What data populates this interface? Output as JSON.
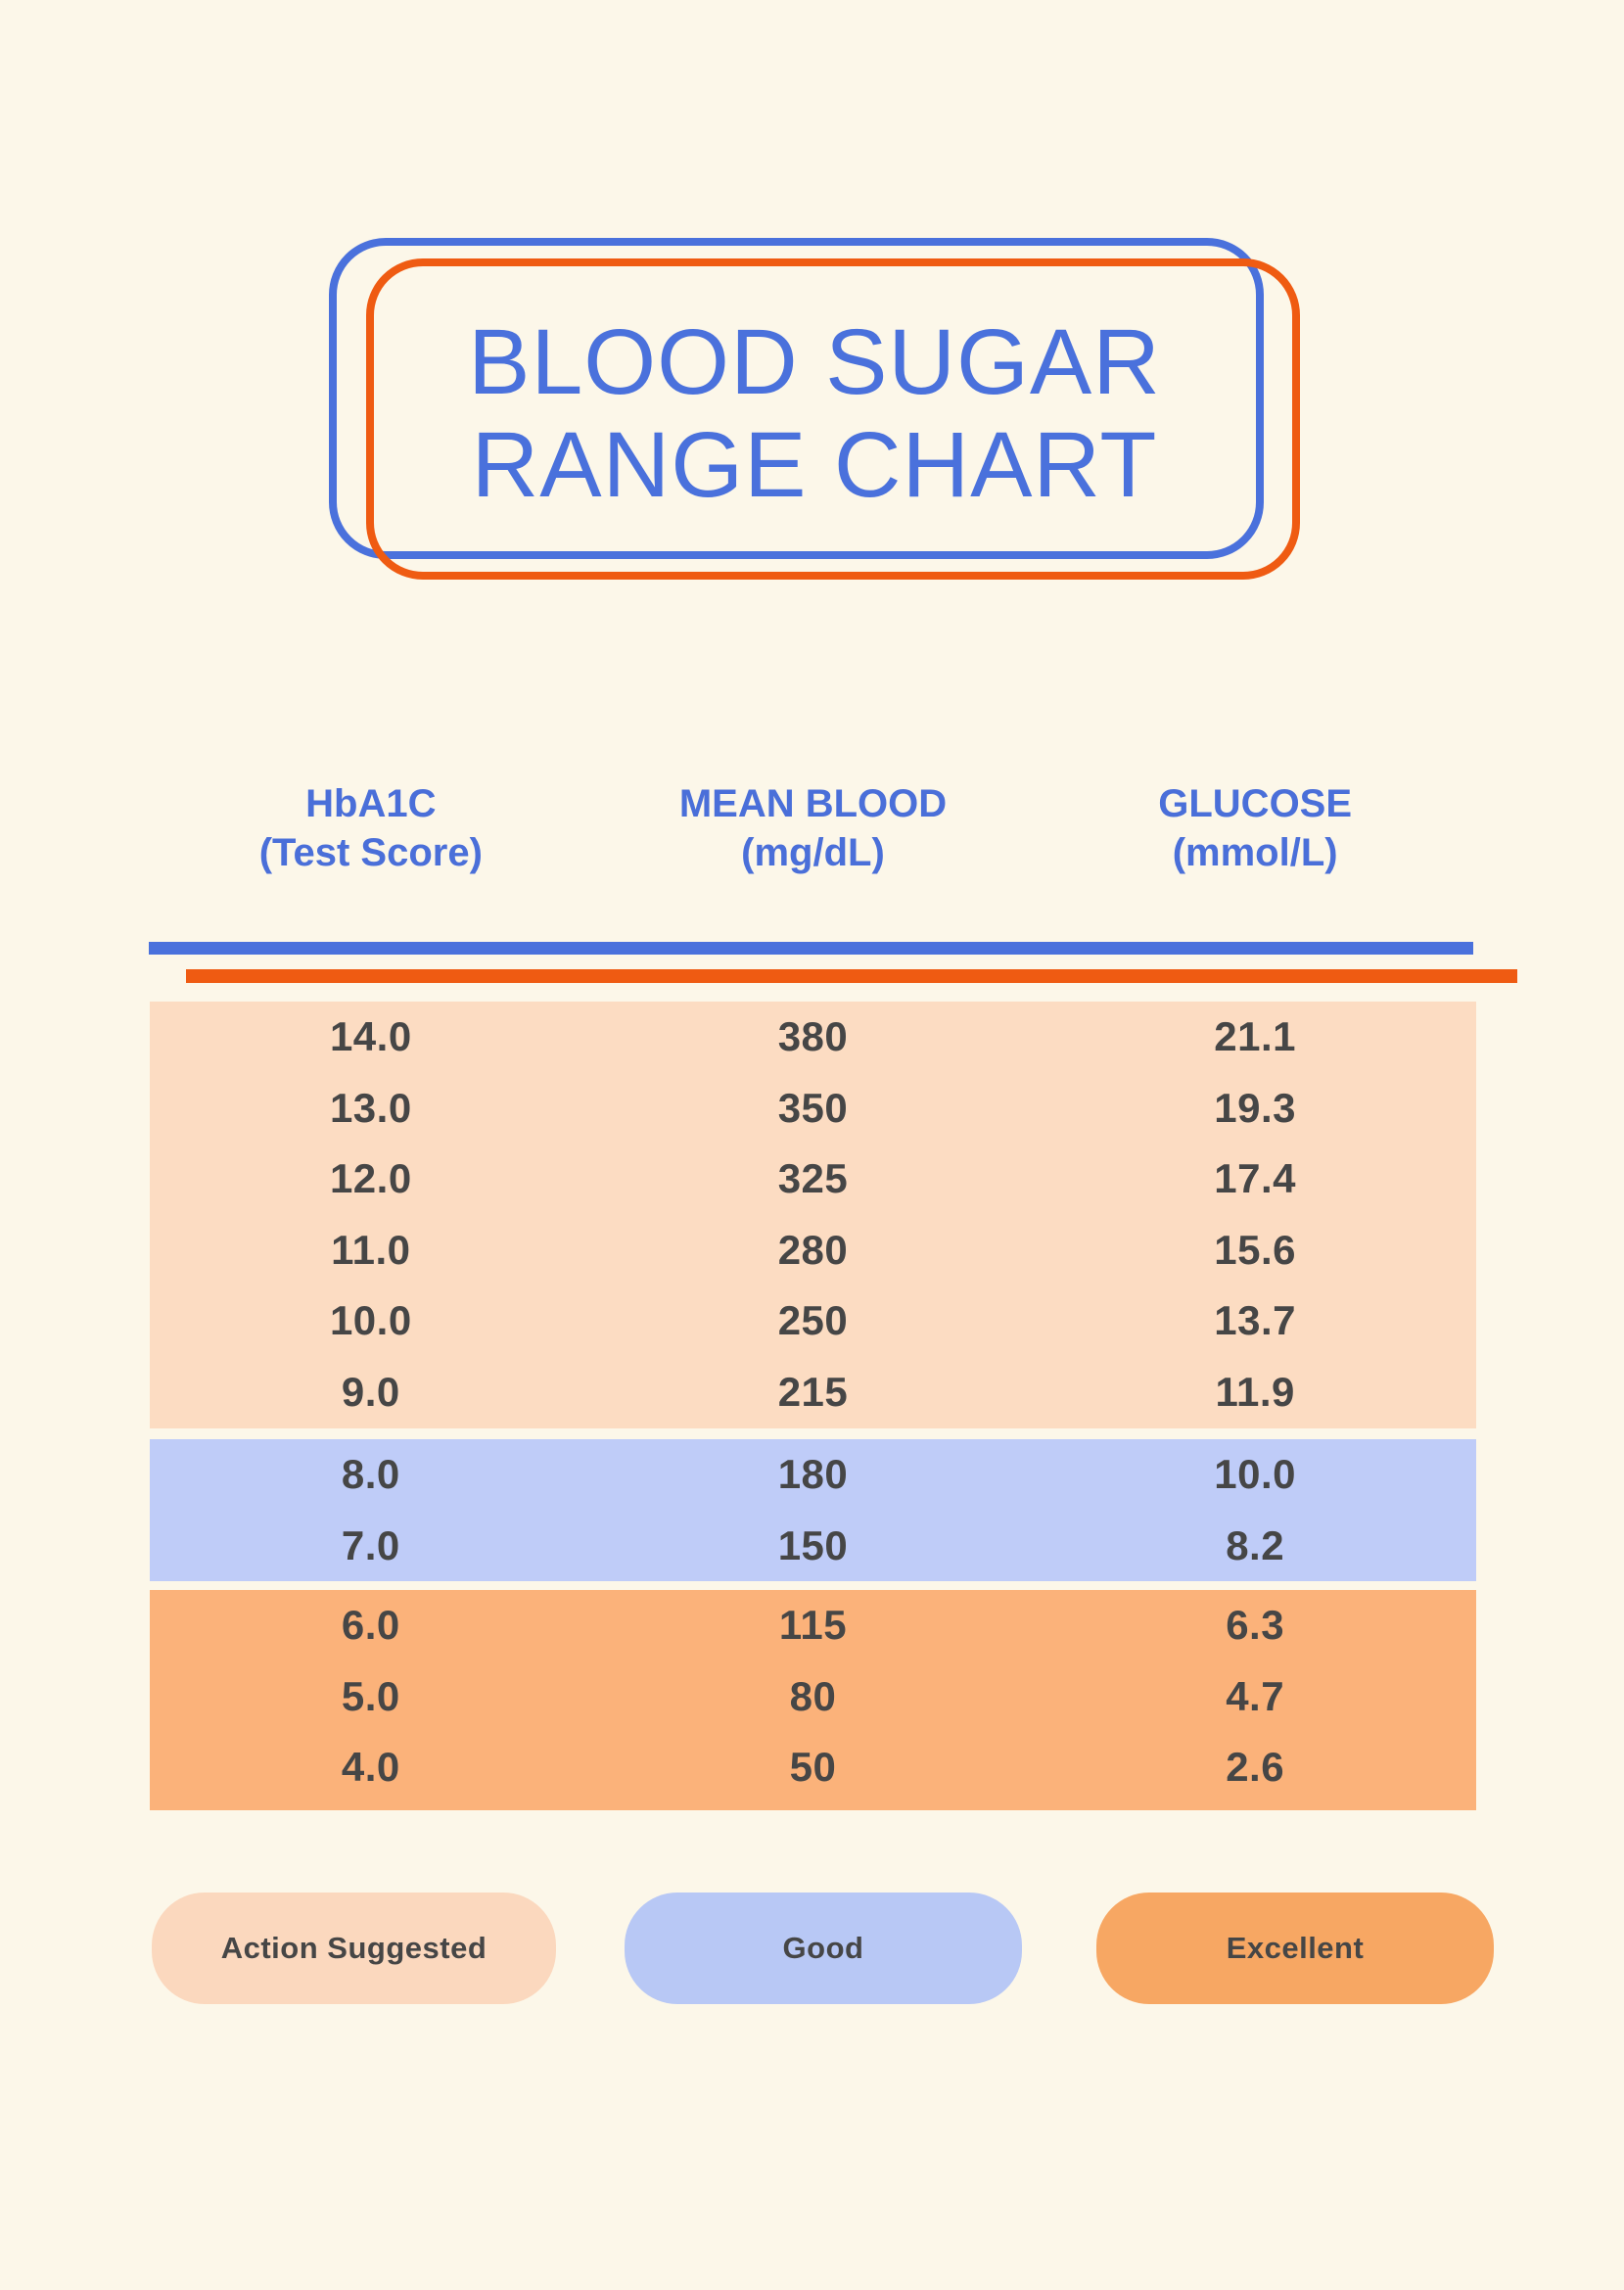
{
  "page": {
    "background_color": "#FCF7E9"
  },
  "title": {
    "line1": "BLOOD SUGAR",
    "line2": "RANGE CHART",
    "text_color": "#4A71DC",
    "border_blue_color": "#4A71DC",
    "border_orange_color": "#EF5B12"
  },
  "table": {
    "headers": [
      {
        "line1": "HbA1C",
        "line2": "(Test Score)"
      },
      {
        "line1": "MEAN BLOOD",
        "line2": "(mg/dL)"
      },
      {
        "line1": "GLUCOSE",
        "line2": "(mmol/L)"
      }
    ],
    "divider_blue_color": "#4A71DC",
    "divider_orange_color": "#EF5B12",
    "sections": [
      {
        "zone": "Action Suggested",
        "color": "#FCDCC2",
        "rows": [
          [
            "14.0",
            "380",
            "21.1"
          ],
          [
            "13.0",
            "350",
            "19.3"
          ],
          [
            "12.0",
            "325",
            "17.4"
          ],
          [
            "11.0",
            "280",
            "15.6"
          ],
          [
            "10.0",
            "250",
            "13.7"
          ],
          [
            "9.0",
            "215",
            "11.9"
          ]
        ]
      },
      {
        "zone": "Good",
        "color": "#BFCCF8",
        "rows": [
          [
            "8.0",
            "180",
            "10.0"
          ],
          [
            "7.0",
            "150",
            "8.2"
          ]
        ]
      },
      {
        "zone": "Excellent",
        "color": "#FBB27A",
        "rows": [
          [
            "6.0",
            "115",
            "6.3"
          ],
          [
            "5.0",
            "80",
            "4.7"
          ],
          [
            "4.0",
            "50",
            "2.6"
          ]
        ]
      }
    ]
  },
  "legend": {
    "items": [
      {
        "label": "Action Suggested",
        "color": "#FBD8BE"
      },
      {
        "label": "Good",
        "color": "#B8C8F5"
      },
      {
        "label": "Excellent",
        "color": "#F7A763"
      }
    ]
  },
  "chart_data": {
    "type": "table",
    "title": "BLOOD SUGAR RANGE CHART",
    "columns": [
      "HbA1C (Test Score)",
      "MEAN BLOOD (mg/dL)",
      "GLUCOSE (mmol/L)"
    ],
    "rows": [
      {
        "hba1c": 14.0,
        "mean_blood_mg_dl": 380,
        "glucose_mmol_l": 21.1,
        "zone": "Action Suggested"
      },
      {
        "hba1c": 13.0,
        "mean_blood_mg_dl": 350,
        "glucose_mmol_l": 19.3,
        "zone": "Action Suggested"
      },
      {
        "hba1c": 12.0,
        "mean_blood_mg_dl": 325,
        "glucose_mmol_l": 17.4,
        "zone": "Action Suggested"
      },
      {
        "hba1c": 11.0,
        "mean_blood_mg_dl": 280,
        "glucose_mmol_l": 15.6,
        "zone": "Action Suggested"
      },
      {
        "hba1c": 10.0,
        "mean_blood_mg_dl": 250,
        "glucose_mmol_l": 13.7,
        "zone": "Action Suggested"
      },
      {
        "hba1c": 9.0,
        "mean_blood_mg_dl": 215,
        "glucose_mmol_l": 11.9,
        "zone": "Action Suggested"
      },
      {
        "hba1c": 8.0,
        "mean_blood_mg_dl": 180,
        "glucose_mmol_l": 10.0,
        "zone": "Good"
      },
      {
        "hba1c": 7.0,
        "mean_blood_mg_dl": 150,
        "glucose_mmol_l": 8.2,
        "zone": "Good"
      },
      {
        "hba1c": 6.0,
        "mean_blood_mg_dl": 115,
        "glucose_mmol_l": 6.3,
        "zone": "Excellent"
      },
      {
        "hba1c": 5.0,
        "mean_blood_mg_dl": 80,
        "glucose_mmol_l": 4.7,
        "zone": "Excellent"
      },
      {
        "hba1c": 4.0,
        "mean_blood_mg_dl": 50,
        "glucose_mmol_l": 2.6,
        "zone": "Excellent"
      }
    ],
    "legend": [
      "Action Suggested",
      "Good",
      "Excellent"
    ],
    "legend_position": "bottom",
    "grid": false
  }
}
